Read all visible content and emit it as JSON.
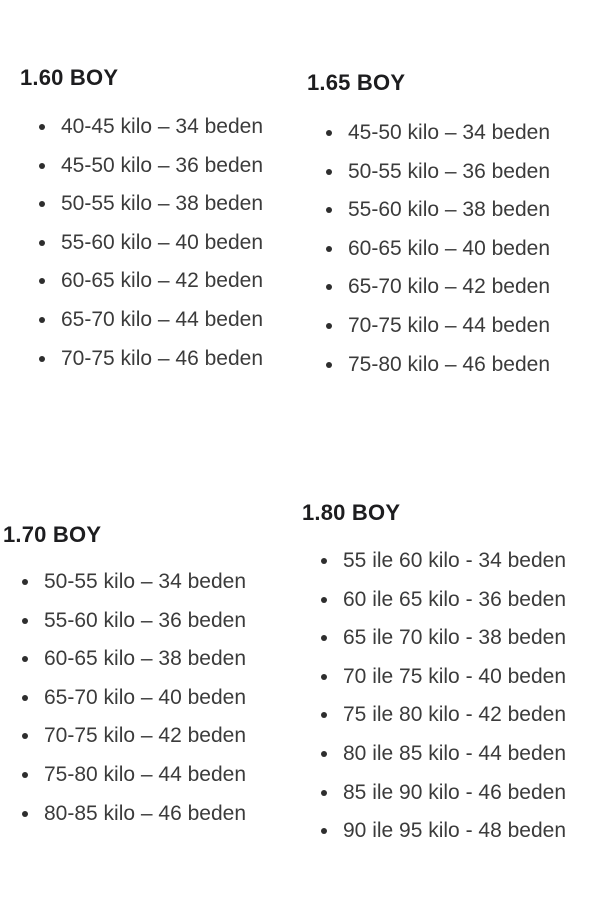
{
  "page": {
    "background_color": "#ffffff",
    "heading_color": "#1d1d1f",
    "body_text_color": "#3b3b3b",
    "language": "Turkish"
  },
  "sections": [
    {
      "title": "1.60 BOY",
      "items": [
        "40-45 kilo – 34 beden",
        "45-50 kilo – 36 beden",
        "50-55 kilo – 38 beden",
        "55-60 kilo – 40 beden",
        "60-65 kilo – 42 beden",
        "65-70 kilo – 44 beden",
        "70-75 kilo – 46 beden"
      ]
    },
    {
      "title": "1.65 BOY",
      "items": [
        "45-50 kilo – 34 beden",
        "50-55 kilo – 36 beden",
        "55-60 kilo – 38 beden",
        "60-65 kilo – 40 beden",
        "65-70 kilo – 42 beden",
        "70-75 kilo – 44 beden",
        "75-80 kilo – 46 beden"
      ]
    },
    {
      "title": "1.70 BOY",
      "items": [
        "50-55 kilo – 34 beden",
        "55-60 kilo – 36 beden",
        "60-65 kilo – 38 beden",
        "65-70 kilo – 40 beden",
        "70-75 kilo – 42 beden",
        "75-80 kilo – 44 beden",
        "80-85 kilo – 46 beden"
      ]
    },
    {
      "title": "1.80 BOY",
      "items": [
        "55 ile 60 kilo - 34 beden",
        "60 ile 65 kilo - 36 beden",
        "65 ile 70 kilo - 38 beden",
        "70 ile 75 kilo - 40 beden",
        "75 ile 80 kilo - 42 beden",
        "80 ile 85 kilo - 44 beden",
        "85 ile 90 kilo - 46 beden",
        "90 ile 95 kilo - 48 beden"
      ]
    }
  ]
}
